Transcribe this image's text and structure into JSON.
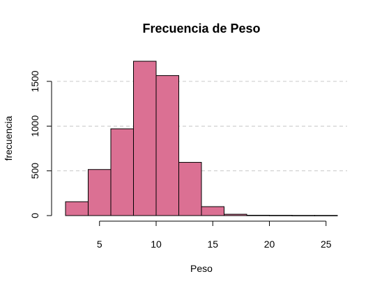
{
  "chart_data": {
    "type": "bar",
    "title": "Frecuencia de Peso",
    "xlabel": "Peso",
    "ylabel": "frecuencia",
    "bar_color": "#DB7093",
    "grid": true,
    "xlim": [
      2,
      26
    ],
    "ylim": [
      0,
      1750
    ],
    "x_ticks": [
      5,
      10,
      15,
      20,
      25
    ],
    "y_ticks": [
      0,
      500,
      1000,
      1500
    ],
    "bins": [
      {
        "start": 2,
        "end": 4,
        "value": 155
      },
      {
        "start": 4,
        "end": 6,
        "value": 515
      },
      {
        "start": 6,
        "end": 8,
        "value": 970
      },
      {
        "start": 8,
        "end": 10,
        "value": 1725
      },
      {
        "start": 10,
        "end": 12,
        "value": 1565
      },
      {
        "start": 12,
        "end": 14,
        "value": 595
      },
      {
        "start": 14,
        "end": 16,
        "value": 100
      },
      {
        "start": 16,
        "end": 18,
        "value": 15
      },
      {
        "start": 18,
        "end": 20,
        "value": 4
      },
      {
        "start": 20,
        "end": 22,
        "value": 3
      },
      {
        "start": 22,
        "end": 24,
        "value": 2
      },
      {
        "start": 24,
        "end": 26,
        "value": 2
      }
    ]
  }
}
